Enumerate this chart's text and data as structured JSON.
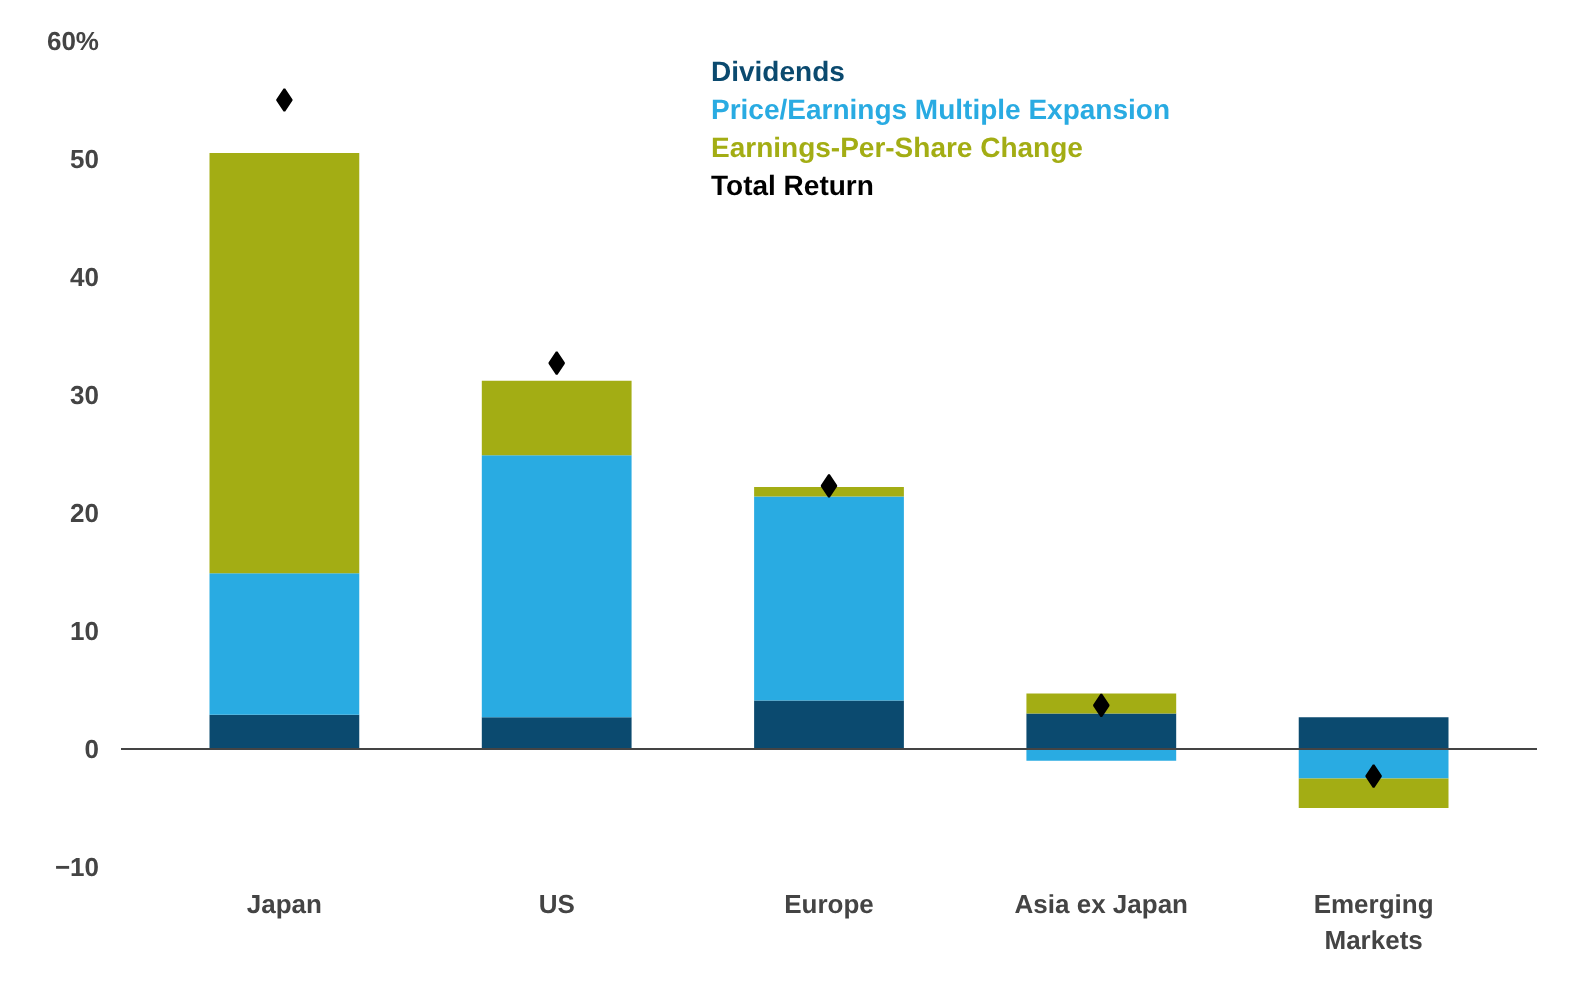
{
  "chart_data": {
    "type": "bar",
    "stacked": true,
    "categories": [
      "Japan",
      "US",
      "Europe",
      "Asia ex Japan",
      "Emerging\nMarkets"
    ],
    "series": [
      {
        "name": "Dividends",
        "color": "#0b4a6f",
        "values": [
          2.9,
          2.7,
          4.1,
          3.0,
          2.7
        ]
      },
      {
        "name": "Price/Earnings Multiple Expansion",
        "color": "#29abe2",
        "values": [
          12.0,
          22.2,
          17.3,
          -1.0,
          -2.5
        ]
      },
      {
        "name": "Earnings-Per-Share Change",
        "color": "#a3ad14",
        "values": [
          35.6,
          6.3,
          0.8,
          1.7,
          -2.5
        ]
      },
      {
        "name": "Total Return",
        "color": "#000000",
        "type": "scatter",
        "marker": "diamond",
        "values": [
          55.0,
          32.7,
          22.3,
          3.7,
          -2.3
        ]
      }
    ],
    "ylim": [
      -10,
      60
    ],
    "yticks": [
      -10,
      0,
      10,
      20,
      30,
      40,
      {
        "value": 60,
        "label": "60%"
      },
      50
    ],
    "ref_lines": [
      {
        "axis": "y",
        "value": 0,
        "color": "#444444",
        "line_style": "solid"
      }
    ],
    "grid": false,
    "legend": "top"
  }
}
